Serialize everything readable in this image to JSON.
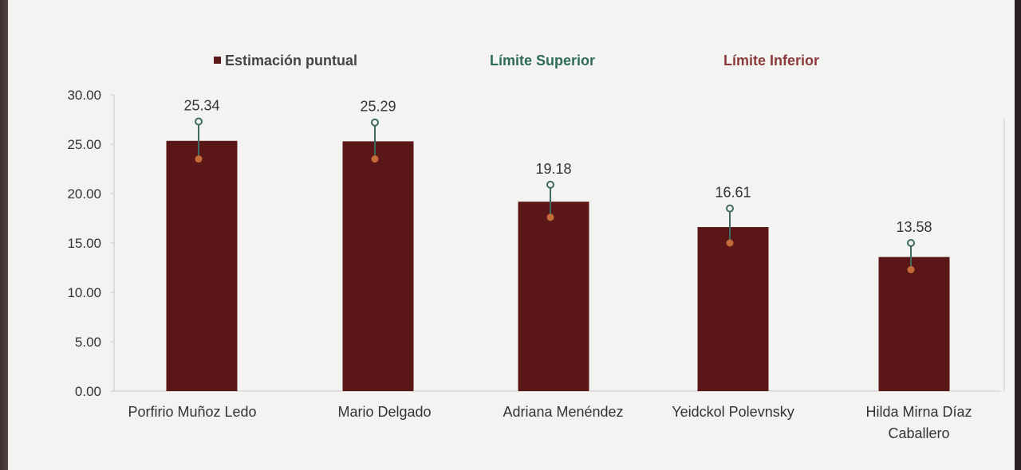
{
  "legend": {
    "estimate": "Estimación puntual",
    "upper": "Límite Superior",
    "lower": "Límite Inferior"
  },
  "colors": {
    "bar": "#5b1717",
    "upper_marker": "#3e6a62",
    "lower_marker": "#c56b3a",
    "legend_upper": "#2e6b55",
    "legend_lower": "#8a3a3a"
  },
  "chart_data": {
    "type": "bar",
    "categories": [
      [
        "Porfirio Muñoz Ledo"
      ],
      [
        "Mario Delgado"
      ],
      [
        "Adriana Menéndez"
      ],
      [
        "Yeidckol Polevnsky"
      ],
      [
        "Hilda Mirna Díaz",
        "Caballero"
      ]
    ],
    "series": [
      {
        "name": "Estimación puntual",
        "values": [
          25.34,
          25.29,
          19.18,
          16.61,
          13.58
        ]
      },
      {
        "name": "Límite Superior",
        "values": [
          27.3,
          27.2,
          20.9,
          18.5,
          15.0
        ]
      },
      {
        "name": "Límite Inferior",
        "values": [
          23.5,
          23.5,
          17.6,
          15.0,
          12.3
        ]
      }
    ],
    "data_labels": [
      "25.34",
      "25.29",
      "19.18",
      "16.61",
      "13.58"
    ],
    "y_ticks": [
      "0.00",
      "5.00",
      "10.00",
      "15.00",
      "20.00",
      "25.00",
      "30.00"
    ],
    "ylim": [
      0,
      30
    ],
    "grid": false,
    "legend_position": "top"
  }
}
